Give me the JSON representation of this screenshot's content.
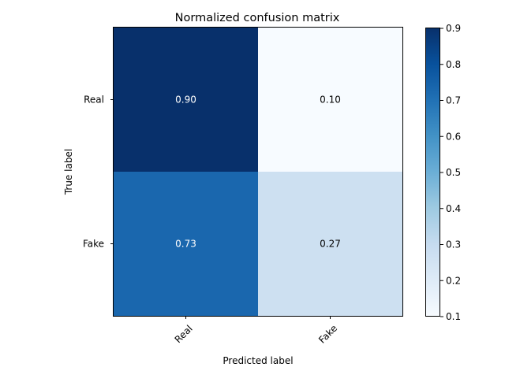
{
  "chart_data": {
    "type": "heatmap",
    "title": "Normalized confusion matrix",
    "xlabel": "Predicted label",
    "ylabel": "True label",
    "x_categories": [
      "Real",
      "Fake"
    ],
    "y_categories": [
      "Real",
      "Fake"
    ],
    "values": [
      [
        0.9,
        0.1
      ],
      [
        0.73,
        0.27
      ]
    ],
    "cell_labels": [
      [
        "0.90",
        "0.10"
      ],
      [
        "0.73",
        "0.27"
      ]
    ],
    "colormap": "Blues",
    "colorbar": {
      "range": [
        0.1,
        0.9
      ],
      "ticks": [
        "0.1",
        "0.2",
        "0.3",
        "0.4",
        "0.5",
        "0.6",
        "0.7",
        "0.8",
        "0.9"
      ]
    },
    "grid": false
  }
}
